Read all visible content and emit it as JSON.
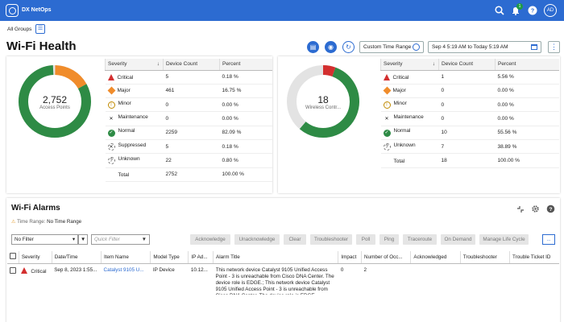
{
  "app": {
    "name": "DX NetOps",
    "avatar": "AD",
    "notif_count": "1"
  },
  "groups_label": "All Groups",
  "page_title": "Wi-Fi Health",
  "time_range": {
    "button": "Custom Time Range",
    "range": "Sep 4 5:19 AM to Today 5:19 AM"
  },
  "colors": {
    "brand": "#2c6bd1",
    "critical": "#d32f2f",
    "major": "#f08c2b",
    "normal": "#2e8b45",
    "track": "#e3e3e3"
  },
  "headers": {
    "severity": "Severity",
    "count": "Device Count",
    "percent": "Percent"
  },
  "left_panel": {
    "center_value": "2,752",
    "center_label": "Access Points",
    "rows": [
      {
        "icon": "critical-icon",
        "label": "Critical",
        "count": "5",
        "pct": "0.18 %"
      },
      {
        "icon": "major-icon",
        "label": "Major",
        "count": "461",
        "pct": "16.75 %"
      },
      {
        "icon": "minor-icon",
        "label": "Minor",
        "count": "0",
        "pct": "0.00 %"
      },
      {
        "icon": "maintenance-icon",
        "label": "Maintenance",
        "count": "0",
        "pct": "0.00 %"
      },
      {
        "icon": "normal-icon",
        "label": "Normal",
        "count": "2259",
        "pct": "82.09 %"
      },
      {
        "icon": "suppressed-icon",
        "label": "Suppressed",
        "count": "5",
        "pct": "0.18 %"
      },
      {
        "icon": "unknown-icon",
        "label": "Unknown",
        "count": "22",
        "pct": "0.80 %"
      },
      {
        "icon": "",
        "label": "Total",
        "count": "2752",
        "pct": "100.00 %"
      }
    ]
  },
  "right_panel": {
    "center_value": "18",
    "center_label": "Wireless Contr...",
    "rows": [
      {
        "icon": "critical-icon",
        "label": "Critical",
        "count": "1",
        "pct": "5.56 %"
      },
      {
        "icon": "major-icon",
        "label": "Major",
        "count": "0",
        "pct": "0.00 %"
      },
      {
        "icon": "minor-icon",
        "label": "Minor",
        "count": "0",
        "pct": "0.00 %"
      },
      {
        "icon": "maintenance-icon",
        "label": "Maintenance",
        "count": "0",
        "pct": "0.00 %"
      },
      {
        "icon": "normal-icon",
        "label": "Normal",
        "count": "10",
        "pct": "55.56 %"
      },
      {
        "icon": "unknown-icon",
        "label": "Unknown",
        "count": "7",
        "pct": "38.89 %"
      },
      {
        "icon": "",
        "label": "Total",
        "count": "18",
        "pct": "100.00 %"
      }
    ]
  },
  "alarms": {
    "title": "Wi-Fi Alarms",
    "time_range_label": "Time Range:",
    "time_range_value": "No Time Range",
    "filter_value": "No Filter",
    "quick_filter_placeholder": "Quick Filter",
    "buttons": [
      "Acknowledge",
      "Unacknowledge",
      "Clear",
      "Troubleshooter",
      "Poll",
      "Ping",
      "Traceroute",
      "On Demand",
      "Manage Life Cycle"
    ],
    "more_label": "...",
    "columns": [
      "Severity",
      "Date/Time",
      "Item Name",
      "Model Type",
      "IP Ad...",
      "Alarm Title",
      "Impact",
      "Number of Occ...",
      "Acknowledged",
      "Troubleshooter",
      "Trouble Ticket ID"
    ],
    "rows": [
      {
        "severity": "Critical",
        "datetime": "Sep 8, 2023 1:55...",
        "item": "Catalyst 9105 U...",
        "model": "IP Device",
        "ip": "10.12...",
        "title": "This network device Catalyst 9105 Unified Access Point - 3 is unreachable from Cisco DNA Center. The device role is EDGE.; This network device Catalyst 9105 Unified Access Point - 3 is unreachable from Cisco DNA Center. The device role is EDGE.",
        "impact": "0",
        "occurrences": "2",
        "acknowledged": "",
        "troubleshooter": "",
        "ticket": ""
      }
    ]
  }
}
